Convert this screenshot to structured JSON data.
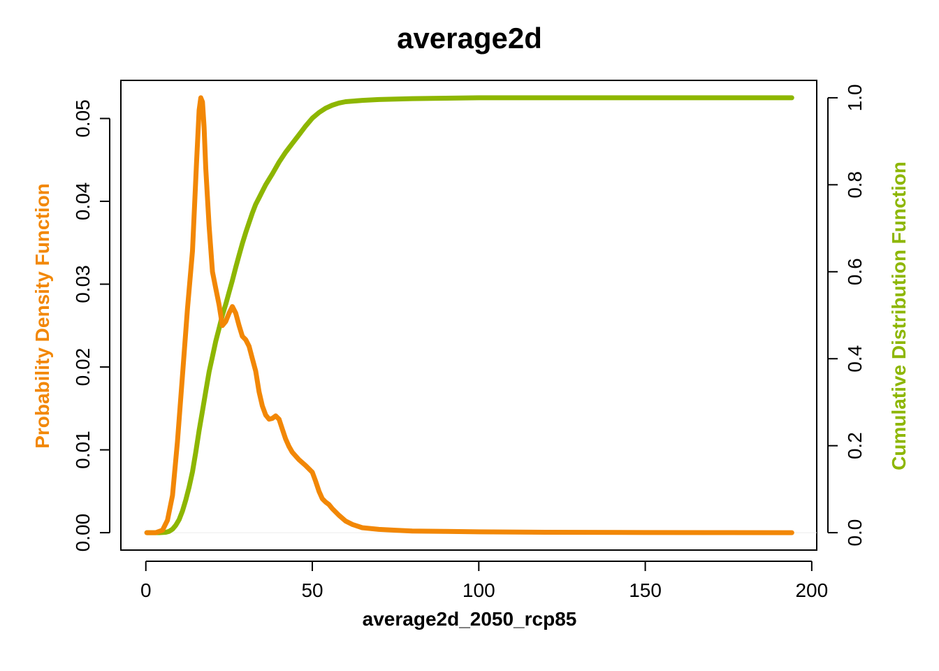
{
  "colors": {
    "pdf": "#f28705",
    "cdf": "#8db600",
    "axis": "#000000"
  },
  "chart_data": {
    "type": "line",
    "title": "average2d",
    "xlabel": "average2d_2050_rcp85",
    "ylabel_left": "Probability Density Function",
    "ylabel_right": "Cumulative Distribution Function",
    "xlim": [
      -7.5,
      201.5
    ],
    "ylim_left": [
      -0.0021,
      0.0546
    ],
    "ylim_right": [
      -0.04,
      1.04
    ],
    "x_ticks": [
      0,
      50,
      100,
      150,
      200
    ],
    "x_tick_labels": [
      "0",
      "50",
      "100",
      "150",
      "200"
    ],
    "y_left_ticks": [
      0.0,
      0.01,
      0.02,
      0.03,
      0.04,
      0.05
    ],
    "y_left_tick_labels": [
      "0.00",
      "0.01",
      "0.02",
      "0.03",
      "0.04",
      "0.05"
    ],
    "y_right_ticks": [
      0.0,
      0.2,
      0.4,
      0.6,
      0.8,
      1.0
    ],
    "y_right_tick_labels": [
      "0.0",
      "0.2",
      "0.4",
      "0.6",
      "0.8",
      "1.0"
    ],
    "series": [
      {
        "name": "Probability Density Function",
        "axis": "left",
        "color": "#f28705",
        "x": [
          0.3,
          3,
          5,
          6.5,
          8,
          9.5,
          11,
          12.5,
          14,
          15.2,
          16,
          16.5,
          17,
          17.5,
          18,
          19,
          20,
          21,
          22,
          23,
          24,
          25,
          26,
          27,
          28,
          29,
          30,
          31,
          32,
          33,
          34,
          35,
          36,
          37,
          38,
          39,
          40,
          41,
          42,
          43,
          44,
          46,
          48,
          50,
          51,
          52,
          53,
          54,
          55,
          56,
          58,
          60,
          62,
          65,
          70,
          75,
          80,
          90,
          100,
          120,
          150,
          175,
          194
        ],
        "y": [
          0.0,
          0.0,
          0.0003,
          0.0015,
          0.0045,
          0.011,
          0.019,
          0.027,
          0.034,
          0.0445,
          0.051,
          0.0525,
          0.052,
          0.049,
          0.044,
          0.037,
          0.0315,
          0.0295,
          0.0275,
          0.025,
          0.0255,
          0.0265,
          0.0273,
          0.0265,
          0.025,
          0.0237,
          0.0233,
          0.0225,
          0.021,
          0.0195,
          0.017,
          0.0153,
          0.0142,
          0.0137,
          0.0138,
          0.0141,
          0.0137,
          0.0125,
          0.0113,
          0.0104,
          0.0097,
          0.0088,
          0.0081,
          0.0073,
          0.0062,
          0.005,
          0.0041,
          0.0037,
          0.0034,
          0.0029,
          0.0021,
          0.0014,
          0.001,
          0.0006,
          0.0004,
          0.0003,
          0.0002,
          0.00015,
          0.0001,
          5e-05,
          2e-05,
          1e-05,
          0.0
        ]
      },
      {
        "name": "Cumulative Distribution Function",
        "axis": "right",
        "color": "#8db600",
        "x": [
          0.3,
          4,
          6,
          7,
          8,
          9,
          10,
          11,
          12,
          13,
          14,
          15,
          16,
          17,
          18,
          19,
          20,
          21,
          22,
          23,
          24,
          25,
          26,
          27,
          28,
          29,
          30,
          31,
          32,
          33,
          34,
          35,
          36,
          38,
          40,
          42,
          44,
          46,
          48,
          50,
          52,
          54,
          56,
          58,
          60,
          65,
          70,
          80,
          90,
          100,
          120,
          150,
          194
        ],
        "y": [
          0.0,
          0.0,
          0.001,
          0.003,
          0.008,
          0.017,
          0.03,
          0.05,
          0.075,
          0.105,
          0.14,
          0.185,
          0.235,
          0.28,
          0.325,
          0.37,
          0.405,
          0.44,
          0.47,
          0.5,
          0.525,
          0.553,
          0.58,
          0.61,
          0.638,
          0.665,
          0.69,
          0.713,
          0.735,
          0.755,
          0.77,
          0.785,
          0.8,
          0.825,
          0.852,
          0.875,
          0.895,
          0.915,
          0.935,
          0.953,
          0.966,
          0.976,
          0.983,
          0.988,
          0.991,
          0.994,
          0.996,
          0.998,
          0.999,
          1.0,
          1.0,
          1.0,
          1.0
        ]
      }
    ]
  }
}
